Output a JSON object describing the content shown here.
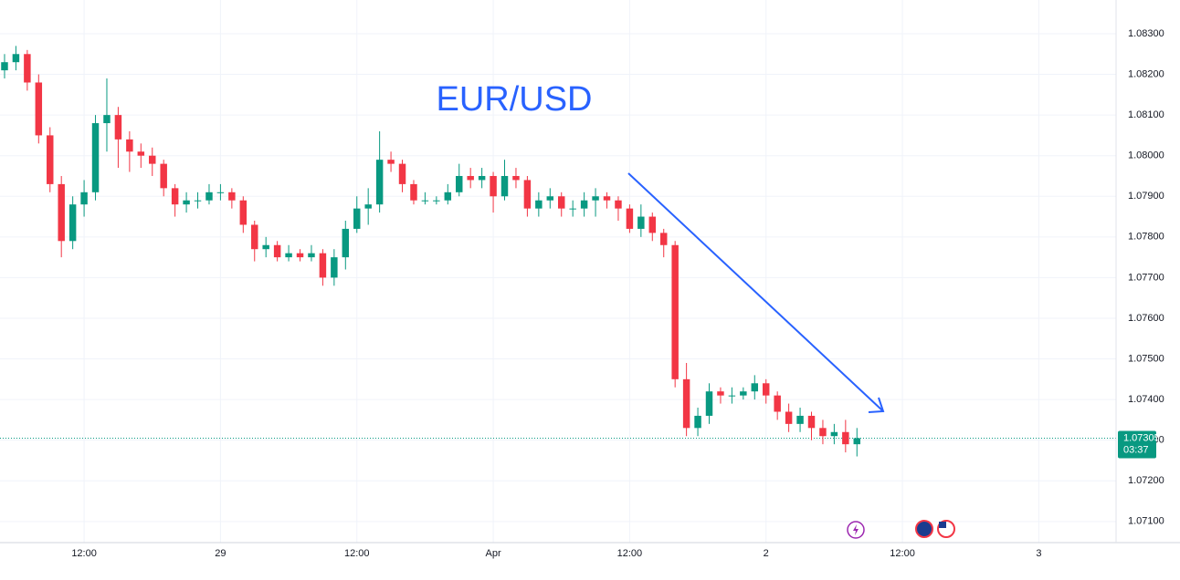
{
  "chart_data": {
    "type": "candlestick",
    "title": "EUR/USD",
    "x": [
      29,
      30,
      31,
      32,
      33,
      34,
      35,
      36,
      37,
      38,
      39,
      40,
      41,
      42,
      43,
      44,
      45,
      46,
      47,
      48,
      49,
      50,
      51,
      52,
      53,
      54,
      55,
      56,
      57,
      58,
      59,
      60,
      61,
      62,
      63,
      64,
      65,
      66,
      67,
      68,
      69,
      70,
      71,
      72,
      73,
      74,
      75,
      76,
      77,
      78,
      79,
      80,
      81,
      82,
      83,
      84,
      85,
      86,
      87,
      88,
      89,
      90,
      91,
      92,
      93,
      94,
      95,
      96,
      97,
      98,
      99,
      100,
      101,
      102,
      103,
      104
    ],
    "open": [
      1.0821,
      1.0823,
      1.0825,
      1.0818,
      1.0805,
      1.0793,
      1.0779,
      1.0788,
      1.0791,
      1.0808,
      1.081,
      1.0804,
      1.0801,
      1.08,
      1.0798,
      1.0792,
      1.0788,
      1.0789,
      1.0789,
      1.0791,
      1.0791,
      1.0789,
      1.0783,
      1.0777,
      1.0778,
      1.0775,
      1.0776,
      1.0775,
      1.0776,
      1.077,
      1.0775,
      1.0782,
      1.0787,
      1.0788,
      1.0799,
      1.0798,
      1.0793,
      1.0789,
      1.0789,
      1.0789,
      1.0791,
      1.0795,
      1.0794,
      1.0795,
      1.079,
      1.0795,
      1.0794,
      1.0787,
      1.0789,
      1.079,
      1.0787,
      1.0787,
      1.0789,
      1.079,
      1.0789,
      1.0787,
      1.0782,
      1.0785,
      1.0781,
      1.0778,
      1.0745,
      1.0733,
      1.0736,
      1.0742,
      1.0741,
      1.0741,
      1.0742,
      1.0744,
      1.0741,
      1.0737,
      1.0734,
      1.0736,
      1.0733,
      1.0731,
      1.0732,
      1.0729
    ],
    "high": [
      1.0825,
      1.0827,
      1.0826,
      1.082,
      1.0807,
      1.0795,
      1.079,
      1.0794,
      1.081,
      1.0819,
      1.0812,
      1.0806,
      1.0803,
      1.0802,
      1.0799,
      1.0793,
      1.0791,
      1.0791,
      1.0793,
      1.0793,
      1.0792,
      1.079,
      1.0784,
      1.078,
      1.0779,
      1.0778,
      1.0777,
      1.0778,
      1.0777,
      1.0777,
      1.0784,
      1.079,
      1.0792,
      1.0806,
      1.0801,
      1.0799,
      1.0794,
      1.0791,
      1.079,
      1.0793,
      1.0798,
      1.0797,
      1.0797,
      1.0796,
      1.0799,
      1.0797,
      1.0795,
      1.0791,
      1.0792,
      1.0791,
      1.0789,
      1.0791,
      1.0792,
      1.0791,
      1.079,
      1.0788,
      1.0788,
      1.0786,
      1.0782,
      1.0779,
      1.0749,
      1.0738,
      1.0744,
      1.0743,
      1.0743,
      1.0743,
      1.0746,
      1.0745,
      1.0742,
      1.0739,
      1.0738,
      1.0737,
      1.0735,
      1.0734,
      1.0735,
      1.0733
    ],
    "low": [
      1.0819,
      1.0821,
      1.0816,
      1.0803,
      1.0791,
      1.0775,
      1.0777,
      1.0785,
      1.0789,
      1.0801,
      1.0797,
      1.0796,
      1.0797,
      1.0795,
      1.079,
      1.0785,
      1.0786,
      1.0787,
      1.0788,
      1.0789,
      1.0787,
      1.0781,
      1.0774,
      1.0775,
      1.0774,
      1.0774,
      1.0774,
      1.0774,
      1.0768,
      1.0768,
      1.0772,
      1.0781,
      1.0783,
      1.0786,
      1.0796,
      1.0791,
      1.0788,
      1.0788,
      1.0788,
      1.0788,
      1.079,
      1.0792,
      1.0792,
      1.0786,
      1.0789,
      1.0792,
      1.0785,
      1.0785,
      1.0787,
      1.0785,
      1.0785,
      1.0785,
      1.0785,
      1.0787,
      1.0784,
      1.0781,
      1.078,
      1.0779,
      1.0775,
      1.0743,
      1.0731,
      1.0731,
      1.0734,
      1.0739,
      1.0739,
      1.074,
      1.074,
      1.0739,
      1.0735,
      1.0732,
      1.0732,
      1.073,
      1.0729,
      1.0729,
      1.0727,
      1.0726
    ],
    "close": [
      1.0823,
      1.0825,
      1.0818,
      1.0805,
      1.0793,
      1.0779,
      1.0788,
      1.0791,
      1.0808,
      1.081,
      1.0804,
      1.0801,
      1.08,
      1.0798,
      1.0792,
      1.0788,
      1.0789,
      1.0789,
      1.0791,
      1.0791,
      1.0789,
      1.0783,
      1.0777,
      1.0778,
      1.0775,
      1.0776,
      1.0775,
      1.0776,
      1.077,
      1.0775,
      1.0782,
      1.0787,
      1.0788,
      1.0799,
      1.0798,
      1.0793,
      1.0789,
      1.0789,
      1.0789,
      1.0791,
      1.0795,
      1.0794,
      1.0795,
      1.079,
      1.0795,
      1.0794,
      1.0787,
      1.0789,
      1.079,
      1.0787,
      1.0787,
      1.0789,
      1.079,
      1.0789,
      1.0787,
      1.0782,
      1.0785,
      1.0781,
      1.0778,
      1.0745,
      1.0733,
      1.0736,
      1.0742,
      1.0741,
      1.0741,
      1.0742,
      1.0744,
      1.0741,
      1.0737,
      1.0734,
      1.0736,
      1.0733,
      1.0731,
      1.0732,
      1.0729,
      1.07305
    ],
    "up_color": "#089981",
    "down_color": "#f23645",
    "xlim": [
      28.6,
      126.8
    ],
    "xticks": [
      {
        "value": 36,
        "label": "12:00"
      },
      {
        "value": 48,
        "label": "29"
      },
      {
        "value": 60,
        "label": "12:00"
      },
      {
        "value": 72,
        "label": "Apr"
      },
      {
        "value": 84,
        "label": "12:00"
      },
      {
        "value": 96,
        "label": "2"
      },
      {
        "value": 108,
        "label": "12:00"
      },
      {
        "value": 120,
        "label": "3"
      }
    ],
    "ylim": [
      1.07048,
      1.08383
    ],
    "yticks": [
      {
        "value": 1.083,
        "label": "1.08300"
      },
      {
        "value": 1.082,
        "label": "1.08200"
      },
      {
        "value": 1.081,
        "label": "1.08100"
      },
      {
        "value": 1.08,
        "label": "1.08000"
      },
      {
        "value": 1.079,
        "label": "1.07900"
      },
      {
        "value": 1.078,
        "label": "1.07800"
      },
      {
        "value": 1.077,
        "label": "1.07700"
      },
      {
        "value": 1.076,
        "label": "1.07600"
      },
      {
        "value": 1.075,
        "label": "1.07500"
      },
      {
        "value": 1.074,
        "label": "1.07400"
      },
      {
        "value": 1.073,
        "label": "1.07300"
      },
      {
        "value": 1.072,
        "label": "1.07200"
      },
      {
        "value": 1.071,
        "label": "1.07100"
      }
    ],
    "grid": true,
    "last_price": 1.07305,
    "countdown": "03:37"
  }
}
